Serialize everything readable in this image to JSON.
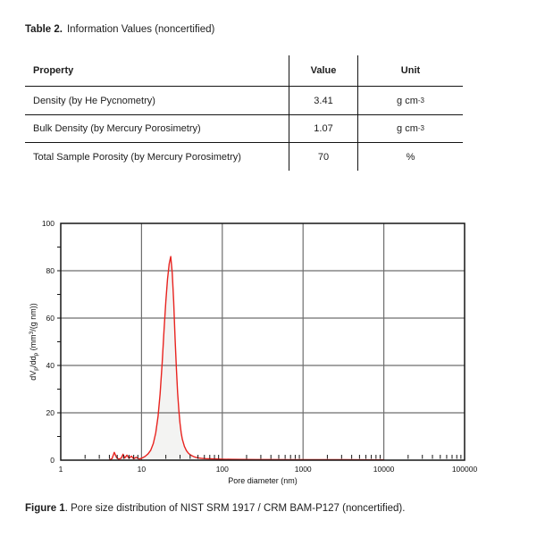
{
  "page": {
    "background": "#ffffff"
  },
  "table_title": {
    "label": "Table 2.",
    "text": "Information Values (noncertified)"
  },
  "table": {
    "headers": [
      "Property",
      "Value",
      "Unit"
    ],
    "rows": [
      {
        "property": "Density (by He Pycnometry)",
        "value": "3.41",
        "unit": "g cm-3",
        "unit_parts": [
          {
            "t": "g cm"
          },
          {
            "t": "-3",
            "sup": true
          }
        ]
      },
      {
        "property": "Bulk Density (by Mercury Porosimetry)",
        "value": "1.07",
        "unit": "g cm-3",
        "unit_parts": [
          {
            "t": "g cm"
          },
          {
            "t": "-3",
            "sup": true
          }
        ]
      },
      {
        "property": "Total Sample Porosity (by Mercury Porosimetry)",
        "value": "70",
        "unit": "%",
        "unit_parts": [
          {
            "t": "%"
          }
        ]
      }
    ]
  },
  "figure_caption": {
    "label": "Figure 1",
    "text": ". Pore size distribution of NIST SRM 1917 / CRM BAM-P127 (noncertified)."
  },
  "chart_data": {
    "type": "area",
    "title": "",
    "xlabel": "Pore diameter (nm)",
    "ylabel": "dVp/ddp (mm3/(g nm))",
    "ylabel_parts": [
      {
        "t": "dV"
      },
      {
        "t": "p",
        "sub": true
      },
      {
        "t": "/dd"
      },
      {
        "t": "p",
        "sub": true
      },
      {
        "t": " (mm"
      },
      {
        "t": "3",
        "sup": true
      },
      {
        "t": "/(g nm))"
      }
    ],
    "xscale": "log",
    "xlim": [
      1,
      100000
    ],
    "ylim": [
      0,
      100
    ],
    "xticks": [
      1,
      10,
      100,
      1000,
      10000,
      100000
    ],
    "xtick_labels": [
      "1",
      "10",
      "100",
      "1000",
      "10000",
      "100000"
    ],
    "yticks": [
      0,
      20,
      40,
      60,
      80,
      100
    ],
    "ytick_labels": [
      "0",
      "20",
      "40",
      "60",
      "80",
      "100"
    ],
    "grid": true,
    "legend": "none",
    "line_color": "#e8231f",
    "fill_color": "#f3f3f2",
    "grid_color": "#6e6e6e",
    "frame_color": "#161616",
    "peak": {
      "x": 23,
      "y": 86
    },
    "series": [
      {
        "name": "pore size distribution",
        "points": [
          [
            4.0,
            0.2
          ],
          [
            4.3,
            0.6
          ],
          [
            4.6,
            3.3
          ],
          [
            4.9,
            1.2
          ],
          [
            5.2,
            0.4
          ],
          [
            5.6,
            0.8
          ],
          [
            5.9,
            2.5
          ],
          [
            6.2,
            0.9
          ],
          [
            6.6,
            2.1
          ],
          [
            7.0,
            0.8
          ],
          [
            7.5,
            1.7
          ],
          [
            8.0,
            0.6
          ],
          [
            8.6,
            1.2
          ],
          [
            9.3,
            0.5
          ],
          [
            10,
            0.8
          ],
          [
            11,
            1.5
          ],
          [
            12,
            2.6
          ],
          [
            13,
            4.2
          ],
          [
            14,
            7
          ],
          [
            15,
            11.5
          ],
          [
            16,
            18.5
          ],
          [
            17,
            28
          ],
          [
            18,
            41
          ],
          [
            19,
            55
          ],
          [
            20,
            67
          ],
          [
            21,
            76.5
          ],
          [
            22,
            83
          ],
          [
            23,
            86
          ],
          [
            24,
            79
          ],
          [
            25,
            67
          ],
          [
            26,
            52
          ],
          [
            27,
            39
          ],
          [
            28,
            28.5
          ],
          [
            29,
            21
          ],
          [
            30,
            15.5
          ],
          [
            31,
            11.5
          ],
          [
            32,
            8.8
          ],
          [
            34,
            5.8
          ],
          [
            36,
            4
          ],
          [
            38,
            3
          ],
          [
            40,
            2.3
          ],
          [
            43,
            1.7
          ],
          [
            46,
            1.3
          ],
          [
            50,
            1
          ],
          [
            55,
            0.8
          ],
          [
            62,
            0.65
          ],
          [
            70,
            0.55
          ],
          [
            85,
            0.5
          ],
          [
            100,
            0.4
          ],
          [
            130,
            0.35
          ],
          [
            180,
            0.3
          ],
          [
            260,
            0.28
          ],
          [
            400,
            0.25
          ],
          [
            650,
            0.22
          ],
          [
            1000,
            0.2
          ],
          [
            1800,
            0.18
          ],
          [
            3200,
            0.18
          ],
          [
            6000,
            0.15
          ],
          [
            10000,
            0.15
          ]
        ]
      }
    ]
  }
}
